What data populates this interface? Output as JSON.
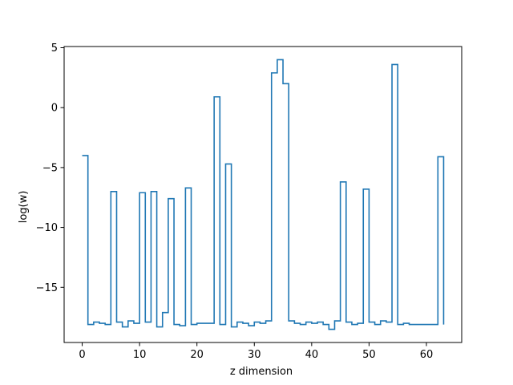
{
  "chart_data": {
    "type": "line",
    "drawstyle": "steps-post",
    "title": "",
    "xlabel": "z dimension",
    "ylabel": "log(w)",
    "xlim": [
      -3.15,
      66.15
    ],
    "ylim": [
      -19.6,
      5.1
    ],
    "x_ticks": [
      0,
      10,
      20,
      30,
      40,
      50,
      60
    ],
    "y_ticks": [
      5,
      0,
      -5,
      -10,
      -15
    ],
    "y_tick_labels": [
      "5",
      "0",
      "−5",
      "−10",
      "−15"
    ],
    "grid": false,
    "series": [
      {
        "color": "#1f77b4",
        "x": [
          0,
          1,
          2,
          3,
          4,
          5,
          6,
          7,
          8,
          9,
          10,
          11,
          12,
          13,
          14,
          15,
          16,
          17,
          18,
          19,
          20,
          21,
          22,
          23,
          24,
          25,
          26,
          27,
          28,
          29,
          30,
          31,
          32,
          33,
          34,
          35,
          36,
          37,
          38,
          39,
          40,
          41,
          42,
          43,
          44,
          45,
          46,
          47,
          48,
          49,
          50,
          51,
          52,
          53,
          54,
          55,
          56,
          57,
          58,
          59,
          60,
          61,
          62,
          63
        ],
        "y": [
          -4.0,
          -18.1,
          -17.9,
          -18.0,
          -18.1,
          -7.0,
          -17.9,
          -18.3,
          -17.8,
          -18.0,
          -7.1,
          -17.9,
          -7.0,
          -18.3,
          -17.1,
          -7.6,
          -18.1,
          -18.2,
          -6.7,
          -18.1,
          -18.0,
          -18.0,
          -18.0,
          0.9,
          -18.1,
          -4.7,
          -18.3,
          -17.9,
          -18.0,
          -18.2,
          -17.9,
          -18.0,
          -17.8,
          2.9,
          4.0,
          2.0,
          -17.8,
          -18.0,
          -18.1,
          -17.9,
          -18.0,
          -17.9,
          -18.1,
          -18.5,
          -17.8,
          -6.2,
          -17.9,
          -18.1,
          -18.0,
          -6.8,
          -17.9,
          -18.1,
          -17.8,
          -17.9,
          3.6,
          -18.1,
          -18.0,
          -18.1,
          -18.1,
          -18.1,
          -18.1,
          -18.1,
          -4.1,
          -18.1
        ]
      }
    ]
  }
}
